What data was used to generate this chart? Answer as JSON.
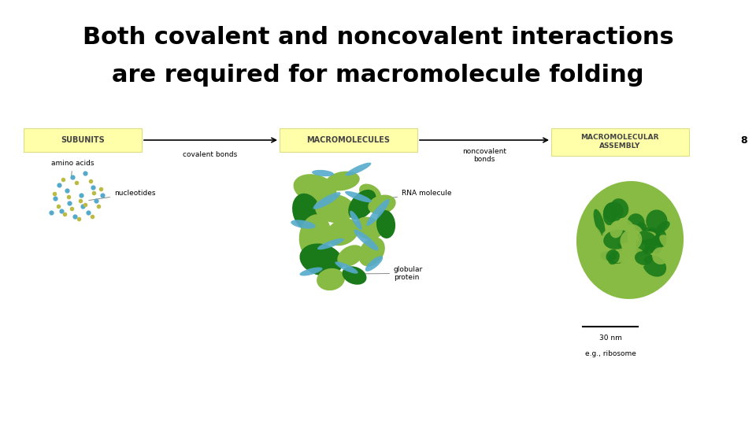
{
  "title_line1": "Both covalent and noncovalent interactions",
  "title_line2": "are required for macromolecule folding",
  "title_fontsize": 22,
  "title_fontweight": "bold",
  "bg_color": "#ffffff",
  "yellow_color": "#FFFFAA",
  "yellow_border": "#DDDD88",
  "label1": "SUBUNITS",
  "label2": "MACROMOLECULES",
  "label3": "MACROMOLECULAR\nASSEMBLY",
  "arrow1_label": "covalent bonds",
  "arrow2_label": "noncovalent\nbonds",
  "sub_label1": "amino acids",
  "sub_label2": "nucleotides",
  "macro_label1": "RNA molecule",
  "macro_label2": "globular\nprotein",
  "scale_label": "30 nm",
  "eg_label": "e.g., ribosome",
  "page_num": "8",
  "dot_blue": "#55AACC",
  "dot_yellow": "#BBBB44",
  "green_dark": "#1A7A1A",
  "green_light": "#88BB44",
  "blue_rna": "#55AACC"
}
